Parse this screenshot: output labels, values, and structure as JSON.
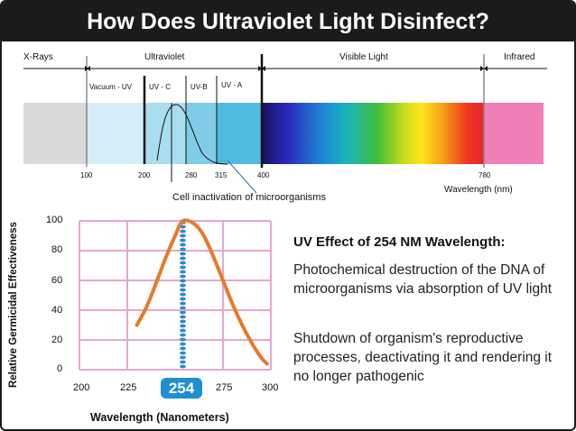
{
  "title": "How Does Ultraviolet Light Disinfect?",
  "spectrum": {
    "band_labels": {
      "xrays": "X-Rays",
      "ultraviolet": "Ultraviolet",
      "visible": "Visible Light",
      "infrared": "Infrared"
    },
    "sub_labels": {
      "vacuum_uv": "Vacuum - UV",
      "uv_c": "UV - C",
      "uv_b": "UV-B",
      "uv_a": "UV - A"
    },
    "ticks": [
      "100",
      "200",
      "280",
      "315",
      "400",
      "780"
    ],
    "axis_label": "Wavelength (nm)",
    "annotation": "Cell inactivation of microorganisms",
    "colors": {
      "xray": "#d9d9d9",
      "uv_light": "#d5eef8",
      "uv_mid": "#7fcce6",
      "infrared": "#f07fb8"
    }
  },
  "chart_data": {
    "type": "line",
    "x": [
      230,
      235,
      240,
      245,
      250,
      254,
      260,
      265,
      270,
      275,
      280,
      285,
      290,
      295,
      298
    ],
    "series": [
      {
        "values": [
          30,
          42,
          58,
          75,
          90,
          100,
          98,
          90,
          76,
          60,
          44,
          30,
          18,
          8,
          4
        ]
      }
    ],
    "highlight_x": 254,
    "xlabel": "Wavelength (Nanometers)",
    "ylabel": "Relative Germicidal Effectiveness",
    "xlim": [
      200,
      300
    ],
    "ylim": [
      0,
      100
    ],
    "x_ticks": [
      "200",
      "225",
      "254",
      "275",
      "300"
    ],
    "y_ticks": [
      "0",
      "20",
      "40",
      "60",
      "80",
      "100"
    ],
    "grid": true,
    "colors": {
      "curve": "#e8782d",
      "highlight": "#1e8fd0",
      "grid": "#e3a8d0"
    }
  },
  "info": {
    "heading": "UV Effect of 254 NM Wavelength:",
    "paragraph1": "Photochemical destruction of the DNA of microorganisms via absorption of UV light",
    "paragraph2": "Shutdown of organism's reproductive processes, deactivating it and rendering it no longer pathogenic"
  }
}
